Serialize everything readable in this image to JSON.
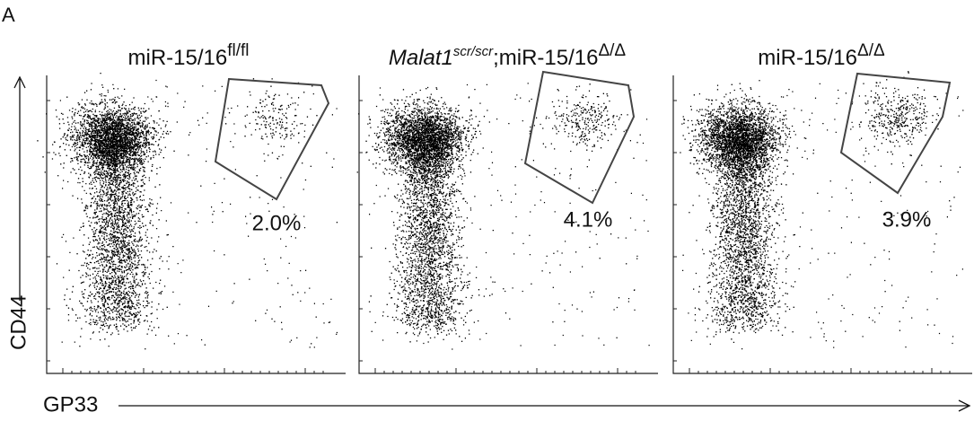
{
  "figure_label": "A",
  "panels": [
    {
      "title": {
        "base": "miR-15/16",
        "sup": "fl/fl"
      },
      "gate_percent": "2.0%"
    },
    {
      "title": {
        "italic": "Malat1",
        "italic_sup": "scr/scr",
        "base": ";miR-15/16",
        "sup": "Δ/Δ"
      },
      "gate_percent": "4.1%"
    },
    {
      "title": {
        "base": "miR-15/16",
        "sup": "Δ/Δ"
      },
      "gate_percent": "3.9%"
    }
  ],
  "y_axis_label": "CD44",
  "x_axis_label": "GP33"
}
